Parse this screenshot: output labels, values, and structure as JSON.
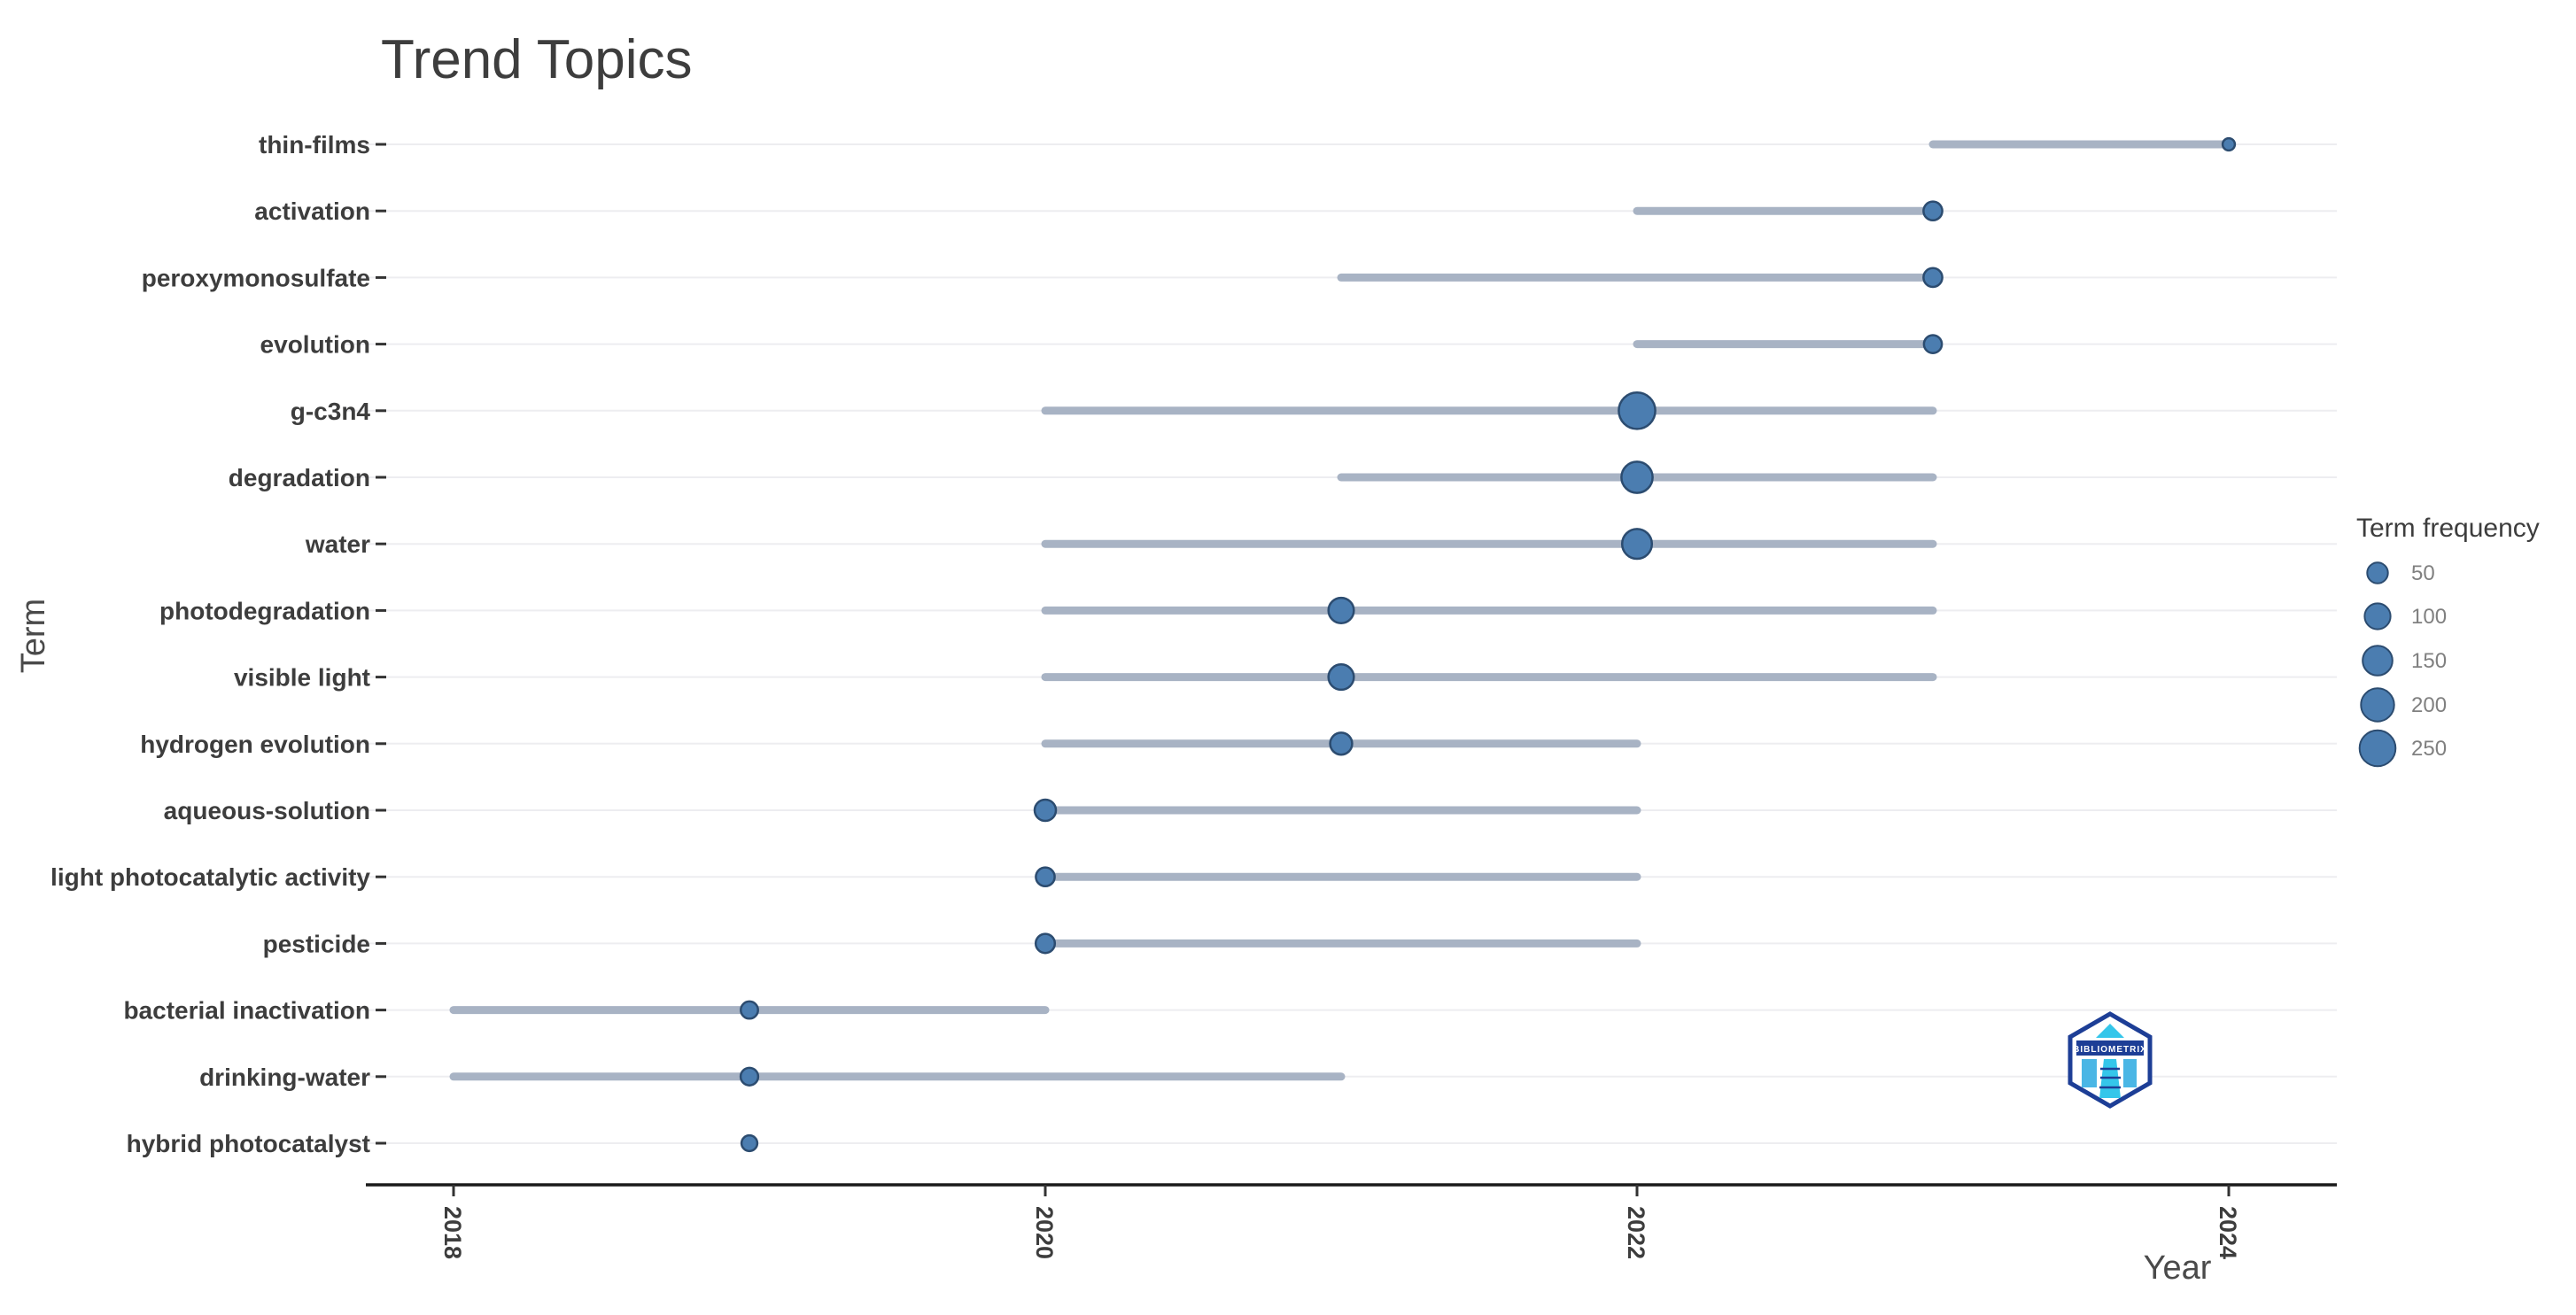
{
  "title": "Trend Topics",
  "axes": {
    "x_title": "Year",
    "y_title": "Term",
    "x_tick_labels": [
      "2018",
      "2020",
      "2022",
      "2024"
    ]
  },
  "legend": {
    "title": "Term frequency",
    "values": [
      "50",
      "100",
      "150",
      "200",
      "250"
    ]
  },
  "colors": {
    "background": "#ffffff",
    "title_text": "#3d3d3d",
    "axis_title_text": "#4a4a4a",
    "tick_text": "#3d3d3d",
    "legend_value_text": "#808080",
    "gridline": "#ededf0",
    "range_line": "#a8b3c4",
    "dot_fill": "#4b7db0",
    "dot_stroke": "#2c4c70",
    "axis_line": "#1a1a1a",
    "logo_navy": "#1d3e96",
    "logo_cyan": "#35c6ea",
    "logo_blue": "#2aa9e0"
  },
  "logo": {
    "text": "BIBLIOMETRIX"
  },
  "chart_data": {
    "type": "scatter",
    "subtype": "trend-topics-lollipop",
    "title": "Trend Topics",
    "xlabel": "Year",
    "ylabel": "Term",
    "x_ticks": [
      2018,
      2020,
      2022,
      2024
    ],
    "x_range": [
      2017.6,
      2024.4
    ],
    "grid": "horizontal-only",
    "legend_position": "right",
    "legend_title": "Term frequency",
    "legend_sizes": [
      50,
      100,
      150,
      200,
      250
    ],
    "terms": [
      {
        "term": "thin-films",
        "freq": 5,
        "year_start": 2023,
        "year_peak": 2024,
        "year_end": 2024
      },
      {
        "term": "activation",
        "freq": 35,
        "year_start": 2022,
        "year_peak": 2023,
        "year_end": 2023
      },
      {
        "term": "peroxymonosulfate",
        "freq": 35,
        "year_start": 2021,
        "year_peak": 2023,
        "year_end": 2023
      },
      {
        "term": "evolution",
        "freq": 30,
        "year_start": 2022,
        "year_peak": 2023,
        "year_end": 2023
      },
      {
        "term": "g-c3n4",
        "freq": 260,
        "year_start": 2020,
        "year_peak": 2022,
        "year_end": 2023
      },
      {
        "term": "degradation",
        "freq": 170,
        "year_start": 2021,
        "year_peak": 2022,
        "year_end": 2023
      },
      {
        "term": "water",
        "freq": 150,
        "year_start": 2020,
        "year_peak": 2022,
        "year_end": 2023
      },
      {
        "term": "photodegradation",
        "freq": 95,
        "year_start": 2020,
        "year_peak": 2021,
        "year_end": 2023
      },
      {
        "term": "visible light",
        "freq": 95,
        "year_start": 2020,
        "year_peak": 2021,
        "year_end": 2023
      },
      {
        "term": "hydrogen evolution",
        "freq": 60,
        "year_start": 2020,
        "year_peak": 2021,
        "year_end": 2022
      },
      {
        "term": "aqueous-solution",
        "freq": 55,
        "year_start": 2020,
        "year_peak": 2020,
        "year_end": 2022
      },
      {
        "term": "light photocatalytic activity",
        "freq": 35,
        "year_start": 2020,
        "year_peak": 2020,
        "year_end": 2022
      },
      {
        "term": "pesticide",
        "freq": 38,
        "year_start": 2020,
        "year_peak": 2020,
        "year_end": 2022
      },
      {
        "term": "bacterial inactivation",
        "freq": 25,
        "year_start": 2018,
        "year_peak": 2019,
        "year_end": 2020
      },
      {
        "term": "drinking-water",
        "freq": 27,
        "year_start": 2018,
        "year_peak": 2019,
        "year_end": 2021
      },
      {
        "term": "hybrid photocatalyst",
        "freq": 18,
        "year_start": 2019,
        "year_peak": 2019,
        "year_end": 2019
      }
    ]
  }
}
